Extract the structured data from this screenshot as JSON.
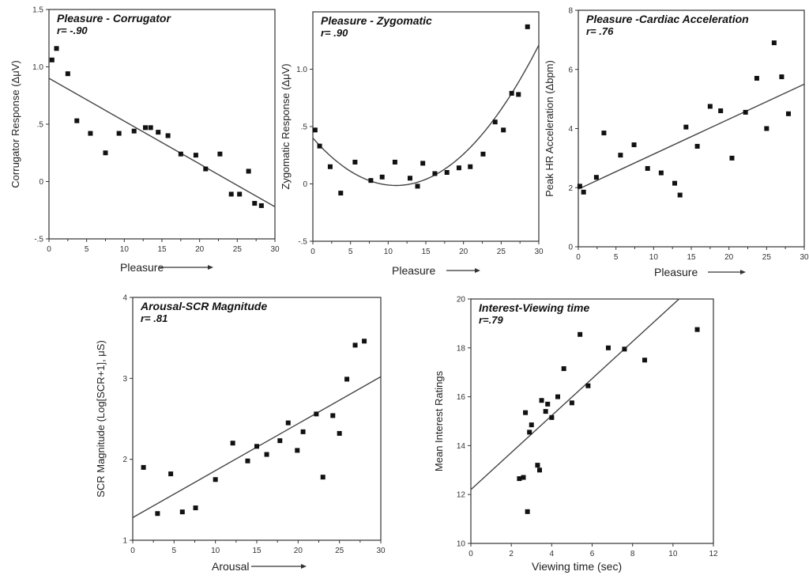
{
  "chart_data": [
    {
      "type": "scatter",
      "title": "Pleasure - Corrugator",
      "subtitle": "r= -.90",
      "xlabel": "Pleasure",
      "ylabel": "Corrugator Response (ΔμV)",
      "xlim": [
        0,
        30
      ],
      "ylim": [
        -0.5,
        1.5
      ],
      "x_ticks": [
        0,
        5,
        10,
        15,
        20,
        25,
        30
      ],
      "y_ticks": [
        -0.5,
        0,
        0.5,
        1.0,
        1.5
      ],
      "y_tick_labels": [
        "-.5",
        "0",
        ".5",
        "1.0",
        "1.5"
      ],
      "fit": {
        "kind": "linear",
        "x": [
          0,
          30
        ],
        "y": [
          0.9,
          -0.22
        ]
      },
      "points": [
        [
          0.4,
          1.06
        ],
        [
          1.0,
          1.16
        ],
        [
          2.5,
          0.94
        ],
        [
          3.7,
          0.53
        ],
        [
          5.5,
          0.42
        ],
        [
          7.5,
          0.25
        ],
        [
          9.3,
          0.42
        ],
        [
          11.3,
          0.44
        ],
        [
          12.8,
          0.47
        ],
        [
          13.5,
          0.47
        ],
        [
          14.5,
          0.43
        ],
        [
          15.8,
          0.4
        ],
        [
          17.5,
          0.24
        ],
        [
          19.5,
          0.23
        ],
        [
          20.8,
          0.11
        ],
        [
          22.7,
          0.24
        ],
        [
          24.2,
          -0.11
        ],
        [
          25.3,
          -0.11
        ],
        [
          26.5,
          0.09
        ],
        [
          27.3,
          -0.19
        ],
        [
          28.2,
          -0.21
        ]
      ]
    },
    {
      "type": "scatter",
      "title": "Pleasure - Zygomatic",
      "subtitle": "r= .90",
      "xlabel": "Pleasure",
      "ylabel": "Zygomatic Response (ΔμV)",
      "xlim": [
        0,
        30
      ],
      "ylim": [
        -0.5,
        1.5
      ],
      "x_ticks": [
        0,
        5,
        10,
        15,
        20,
        25,
        30
      ],
      "y_ticks": [
        -0.5,
        0,
        0.5,
        1.0
      ],
      "y_tick_labels": [
        "-.5",
        "0",
        ".5",
        "1.0"
      ],
      "fit": {
        "kind": "quadratic",
        "coefficients": [
          0.4,
          -0.075,
          0.0034
        ]
      },
      "points": [
        [
          0.3,
          0.47
        ],
        [
          0.9,
          0.33
        ],
        [
          2.3,
          0.15
        ],
        [
          3.7,
          -0.08
        ],
        [
          5.6,
          0.19
        ],
        [
          7.7,
          0.03
        ],
        [
          9.2,
          0.06
        ],
        [
          10.9,
          0.19
        ],
        [
          12.9,
          0.05
        ],
        [
          13.9,
          -0.02
        ],
        [
          14.6,
          0.18
        ],
        [
          16.2,
          0.09
        ],
        [
          17.8,
          0.1
        ],
        [
          19.4,
          0.14
        ],
        [
          20.9,
          0.15
        ],
        [
          22.6,
          0.26
        ],
        [
          24.2,
          0.54
        ],
        [
          25.3,
          0.47
        ],
        [
          26.4,
          0.79
        ],
        [
          27.3,
          0.78
        ],
        [
          28.5,
          1.37
        ]
      ]
    },
    {
      "type": "scatter",
      "title": "Pleasure -Cardiac Acceleration",
      "subtitle": "r= .76",
      "xlabel": "Pleasure",
      "ylabel": "Peak HR Acceleration (Δbpm)",
      "xlim": [
        0,
        30
      ],
      "ylim": [
        0,
        8
      ],
      "x_ticks": [
        0,
        5,
        10,
        15,
        20,
        25,
        30
      ],
      "y_ticks": [
        0,
        2,
        4,
        6,
        8
      ],
      "fit": {
        "kind": "linear",
        "x": [
          0,
          30
        ],
        "y": [
          1.95,
          5.5
        ]
      },
      "points": [
        [
          0.2,
          2.05
        ],
        [
          0.7,
          1.85
        ],
        [
          2.4,
          2.35
        ],
        [
          3.4,
          3.85
        ],
        [
          5.6,
          3.1
        ],
        [
          7.4,
          3.45
        ],
        [
          9.2,
          2.65
        ],
        [
          11.0,
          2.5
        ],
        [
          12.8,
          2.15
        ],
        [
          13.5,
          1.75
        ],
        [
          14.3,
          4.05
        ],
        [
          15.8,
          3.4
        ],
        [
          17.5,
          4.75
        ],
        [
          18.9,
          4.6
        ],
        [
          20.4,
          3.0
        ],
        [
          22.2,
          4.55
        ],
        [
          23.7,
          5.7
        ],
        [
          25.0,
          4.0
        ],
        [
          26.0,
          6.9
        ],
        [
          27.0,
          5.75
        ],
        [
          27.9,
          4.5
        ]
      ]
    },
    {
      "type": "scatter",
      "title": "Arousal-SCR Magnitude",
      "subtitle": "r= .81",
      "xlabel": "Arousal",
      "ylabel": "SCR Magnitude (Log[SCR+1], μS)",
      "xlim": [
        0,
        30
      ],
      "ylim": [
        1,
        4
      ],
      "x_ticks": [
        0,
        5,
        10,
        15,
        20,
        25,
        30
      ],
      "y_ticks": [
        1,
        2,
        3,
        4
      ],
      "fit": {
        "kind": "linear",
        "x": [
          0,
          30
        ],
        "y": [
          1.28,
          3.02
        ]
      },
      "points": [
        [
          1.3,
          1.9
        ],
        [
          3.0,
          1.33
        ],
        [
          4.6,
          1.82
        ],
        [
          6.0,
          1.35
        ],
        [
          7.6,
          1.4
        ],
        [
          10.0,
          1.75
        ],
        [
          12.1,
          2.2
        ],
        [
          13.9,
          1.98
        ],
        [
          15.0,
          2.16
        ],
        [
          16.2,
          2.06
        ],
        [
          17.8,
          2.23
        ],
        [
          18.8,
          2.45
        ],
        [
          19.9,
          2.11
        ],
        [
          20.6,
          2.34
        ],
        [
          22.2,
          2.56
        ],
        [
          23.0,
          1.78
        ],
        [
          24.2,
          2.54
        ],
        [
          25.0,
          2.32
        ],
        [
          25.9,
          2.99
        ],
        [
          26.9,
          3.41
        ],
        [
          28.0,
          3.46
        ]
      ]
    },
    {
      "type": "scatter",
      "title": "Interest-Viewing time",
      "subtitle": "r=.79",
      "xlabel": "Viewing time (sec)",
      "ylabel": "Mean Interest Ratings",
      "xlim": [
        0,
        12
      ],
      "ylim": [
        10,
        20
      ],
      "x_ticks": [
        0,
        2,
        4,
        6,
        8,
        10,
        12
      ],
      "y_ticks": [
        10,
        12,
        14,
        16,
        18,
        20
      ],
      "fit": {
        "kind": "linear",
        "x": [
          0,
          10.3
        ],
        "y": [
          12.2,
          20
        ]
      },
      "points": [
        [
          2.4,
          12.65
        ],
        [
          2.6,
          12.7
        ],
        [
          2.7,
          15.35
        ],
        [
          2.8,
          11.3
        ],
        [
          2.9,
          14.55
        ],
        [
          3.0,
          14.85
        ],
        [
          3.3,
          13.2
        ],
        [
          3.4,
          13.0
        ],
        [
          3.5,
          15.85
        ],
        [
          3.7,
          15.4
        ],
        [
          3.8,
          15.7
        ],
        [
          4.0,
          15.15
        ],
        [
          4.3,
          16.0
        ],
        [
          4.6,
          17.15
        ],
        [
          5.0,
          15.75
        ],
        [
          5.4,
          18.55
        ],
        [
          5.8,
          16.45
        ],
        [
          6.8,
          18.0
        ],
        [
          7.6,
          17.95
        ],
        [
          8.6,
          17.5
        ],
        [
          11.2,
          18.75
        ]
      ]
    }
  ]
}
